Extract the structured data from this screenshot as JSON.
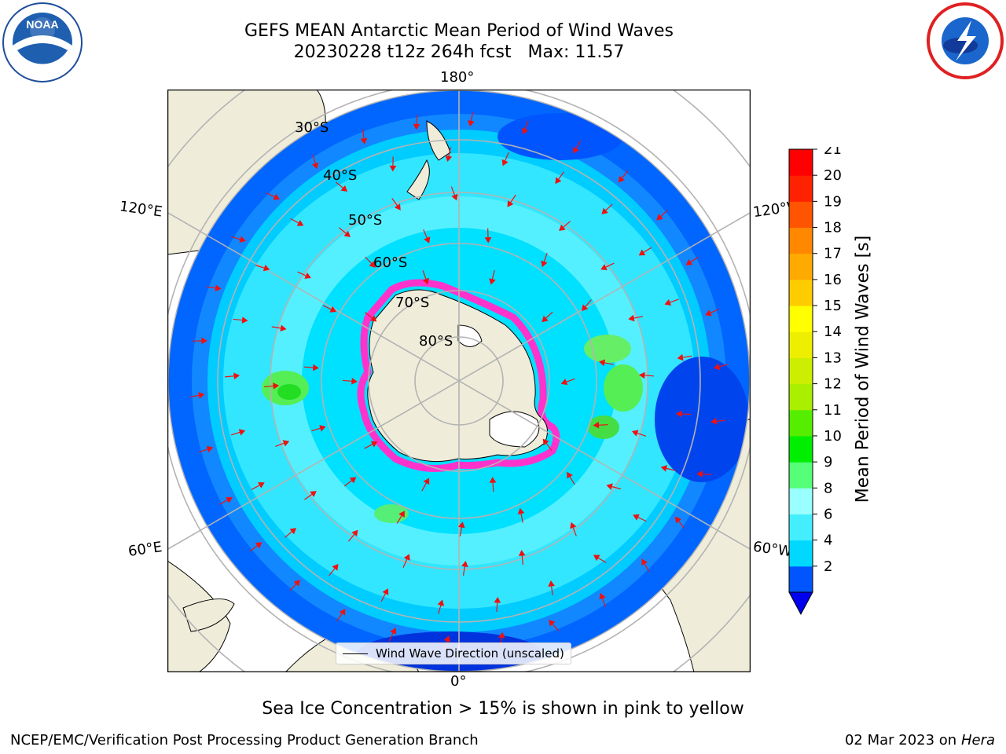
{
  "title": "GEFS MEAN Antarctic Mean Period of Wind Waves",
  "subtitle": "20230228 t12z 264h fcst   Max: 11.57",
  "longitude_labels": {
    "top": "180°",
    "bottom": "0°",
    "upper_left": "120°E",
    "upper_right": "120°W",
    "lower_left": "60°E",
    "lower_right": "60°W"
  },
  "latitude_labels": [
    "30°S",
    "40°S",
    "50°S",
    "60°S",
    "70°S",
    "80°S"
  ],
  "legend_text": "Wind Wave Direction (unscaled)",
  "colorbar": {
    "label": "Mean Period of Wind Waves [s]",
    "ticks": [
      "21",
      "20",
      "19",
      "18",
      "17",
      "16",
      "15",
      "14",
      "13",
      "12",
      "11",
      "10",
      "9",
      "8",
      "6",
      "4",
      "2"
    ],
    "colors_bottom_to_top": [
      "#0055ff",
      "#00d8ff",
      "#44eeff",
      "#99ffff",
      "#55ff77",
      "#00ee00",
      "#55ee00",
      "#aaee00",
      "#ccee00",
      "#eeee00",
      "#ffff00",
      "#ffcc00",
      "#ffaa00",
      "#ff8800",
      "#ff5500",
      "#ff2200",
      "#ff0000"
    ],
    "under_color": "#0000ee"
  },
  "sea_ice_note": "Sea Ice Concentration > 15% is shown in pink to yellow",
  "footer_left": "NCEP/EMC/Verification Post Processing Product Generation Branch",
  "footer_date": "02 Mar 2023 on",
  "footer_machine": "Hera",
  "logos": {
    "left": "noaa-logo",
    "right": "nws-logo"
  }
}
